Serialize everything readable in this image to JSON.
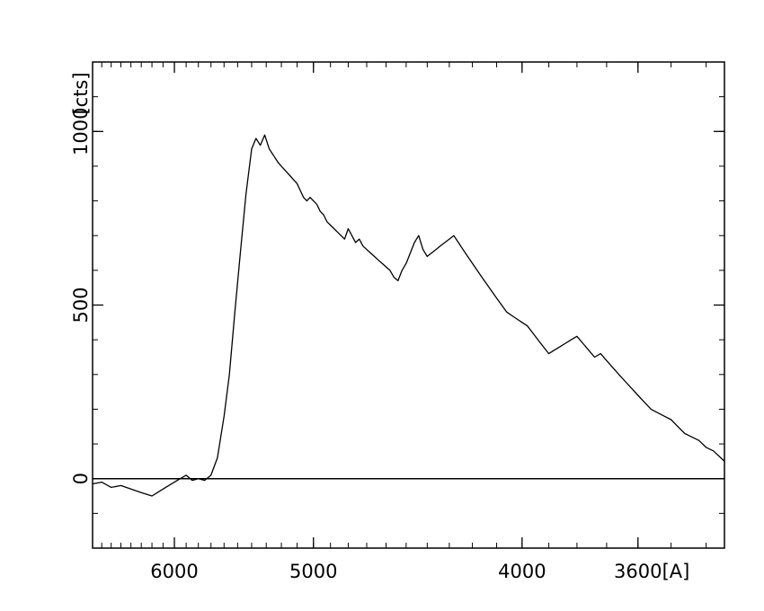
{
  "chart_data": {
    "type": "line",
    "title": "",
    "xlabel": "[A]",
    "ylabel": "[cts]",
    "x_scale": "reciprocal",
    "xlim": [
      6800,
      3350
    ],
    "ylim": [
      -200,
      1200
    ],
    "grid": false,
    "legend": "none",
    "x_ticks": [
      {
        "value": 6000,
        "label": "6000"
      },
      {
        "value": 5000,
        "label": "5000"
      },
      {
        "value": 4000,
        "label": "4000"
      },
      {
        "value": 3600,
        "label": "3600"
      }
    ],
    "y_ticks": [
      {
        "value": 0,
        "label": "0"
      },
      {
        "value": 500,
        "label": "500"
      },
      {
        "value": 1000,
        "label": "1000"
      }
    ],
    "zero_line": true,
    "line_color": "#000000",
    "series": [
      {
        "x": [
          6800,
          6700,
          6600,
          6500,
          6400,
          6300,
          6200,
          6150,
          6100,
          6050,
          6000,
          5950,
          5900,
          5850,
          5800,
          5750,
          5700,
          5650,
          5600,
          5560,
          5520,
          5480,
          5440,
          5400,
          5370,
          5340,
          5310,
          5280,
          5250,
          5220,
          5200,
          5180,
          5160,
          5140,
          5120,
          5100,
          5080,
          5060,
          5040,
          5020,
          5000,
          4980,
          4960,
          4940,
          4920,
          4900,
          4880,
          4860,
          4840,
          4820,
          4800,
          4780,
          4760,
          4740,
          4720,
          4700,
          4680,
          4660,
          4640,
          4620,
          4600,
          4580,
          4560,
          4540,
          4520,
          4500,
          4480,
          4460,
          4440,
          4420,
          4400,
          4380,
          4360,
          4340,
          4320,
          4300,
          4280,
          4260,
          4240,
          4220,
          4200,
          4180,
          4160,
          4140,
          4120,
          4100,
          4080,
          4060,
          4040,
          4020,
          4000,
          3980,
          3960,
          3940,
          3920,
          3900,
          3880,
          3860,
          3840,
          3820,
          3800,
          3780,
          3760,
          3740,
          3720,
          3700,
          3680,
          3660,
          3640,
          3620,
          3600,
          3580,
          3560,
          3540,
          3520,
          3500,
          3480,
          3460,
          3440,
          3420,
          3400,
          3380,
          3360,
          3350
        ],
        "y": [
          -15,
          -10,
          -25,
          -20,
          -30,
          -40,
          -50,
          -40,
          -30,
          -20,
          -10,
          0,
          10,
          -5,
          0,
          -5,
          10,
          60,
          180,
          300,
          480,
          650,
          820,
          950,
          980,
          960,
          990,
          950,
          930,
          910,
          900,
          890,
          880,
          870,
          860,
          850,
          830,
          810,
          800,
          810,
          800,
          790,
          770,
          760,
          740,
          730,
          720,
          710,
          700,
          690,
          720,
          700,
          680,
          690,
          670,
          660,
          650,
          640,
          630,
          620,
          610,
          600,
          580,
          570,
          600,
          620,
          650,
          680,
          700,
          660,
          640,
          650,
          660,
          670,
          680,
          690,
          700,
          680,
          660,
          640,
          620,
          600,
          580,
          560,
          540,
          520,
          500,
          480,
          470,
          460,
          450,
          440,
          420,
          400,
          380,
          360,
          370,
          380,
          390,
          400,
          410,
          390,
          370,
          350,
          360,
          340,
          320,
          300,
          280,
          260,
          240,
          220,
          200,
          190,
          180,
          170,
          150,
          130,
          120,
          110,
          90,
          80,
          60,
          50
        ]
      }
    ]
  }
}
